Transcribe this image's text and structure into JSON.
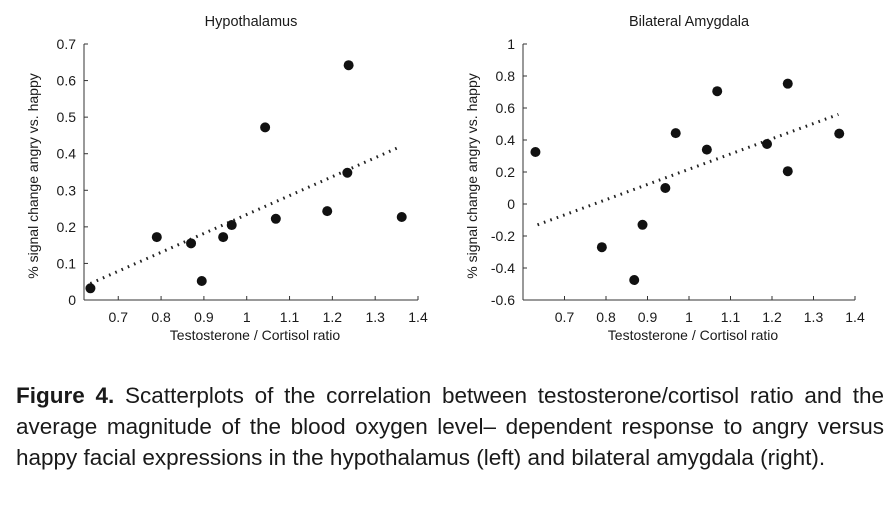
{
  "chart_data": [
    {
      "type": "scatter",
      "title": "Hypothalamus",
      "xlabel": "Testosterone / Cortisol ratio",
      "ylabel": "% signal change angry vs. happy",
      "xlim": [
        0.62,
        1.4
      ],
      "ylim": [
        0,
        0.7
      ],
      "xticks": [
        "0.7",
        "0.8",
        "0.9",
        "1",
        "1.1",
        "1.2",
        "1.3",
        "1.4"
      ],
      "xtick_values": [
        0.7,
        0.8,
        0.9,
        1.0,
        1.1,
        1.2,
        1.3,
        1.4
      ],
      "yticks": [
        "0",
        "0.1",
        "0.2",
        "0.3",
        "0.4",
        "0.5",
        "0.6",
        "0.7"
      ],
      "ytick_values": [
        0,
        0.1,
        0.2,
        0.3,
        0.4,
        0.5,
        0.6,
        0.7
      ],
      "grid": false,
      "points": [
        {
          "x": 0.635,
          "y": 0.032
        },
        {
          "x": 0.79,
          "y": 0.172
        },
        {
          "x": 0.87,
          "y": 0.155
        },
        {
          "x": 0.895,
          "y": 0.052
        },
        {
          "x": 0.945,
          "y": 0.172
        },
        {
          "x": 0.965,
          "y": 0.205
        },
        {
          "x": 1.043,
          "y": 0.472
        },
        {
          "x": 1.068,
          "y": 0.222
        },
        {
          "x": 1.188,
          "y": 0.243
        },
        {
          "x": 1.235,
          "y": 0.348
        },
        {
          "x": 1.238,
          "y": 0.642
        },
        {
          "x": 1.362,
          "y": 0.227
        }
      ],
      "trendline": {
        "style": "dotted",
        "x": [
          0.635,
          1.36
        ],
        "y": [
          0.045,
          0.42
        ]
      }
    },
    {
      "type": "scatter",
      "title": "Bilateral Amygdala",
      "xlabel": "Testosterone / Cortisol ratio",
      "ylabel": "% signal change angry vs. happy",
      "xlim": [
        0.6,
        1.4
      ],
      "ylim": [
        -0.6,
        1
      ],
      "xticks": [
        "0.7",
        "0.8",
        "0.9",
        "1",
        "1.1",
        "1.2",
        "1.3",
        "1.4"
      ],
      "xtick_values": [
        0.7,
        0.8,
        0.9,
        1.0,
        1.1,
        1.2,
        1.3,
        1.4
      ],
      "yticks": [
        "-0.6",
        "-0.4",
        "-0.2",
        "0",
        "0.2",
        "0.4",
        "0.6",
        "0.8",
        "1"
      ],
      "ytick_values": [
        -0.6,
        -0.4,
        -0.2,
        0,
        0.2,
        0.4,
        0.6,
        0.8,
        1.0
      ],
      "grid": false,
      "points": [
        {
          "x": 0.63,
          "y": 0.325
        },
        {
          "x": 0.79,
          "y": -0.27
        },
        {
          "x": 0.868,
          "y": -0.475
        },
        {
          "x": 0.888,
          "y": -0.13
        },
        {
          "x": 0.943,
          "y": 0.1
        },
        {
          "x": 0.968,
          "y": 0.443
        },
        {
          "x": 1.043,
          "y": 0.34
        },
        {
          "x": 1.068,
          "y": 0.705
        },
        {
          "x": 1.188,
          "y": 0.375
        },
        {
          "x": 1.238,
          "y": 0.205
        },
        {
          "x": 1.238,
          "y": 0.752
        },
        {
          "x": 1.362,
          "y": 0.44
        }
      ],
      "trendline": {
        "style": "dotted",
        "x": [
          0.635,
          1.36
        ],
        "y": [
          -0.13,
          0.56
        ]
      }
    }
  ],
  "caption": {
    "label": "Figure 4.",
    "text": "Scatterplots of the correlation between testosterone/cortisol ratio and the average magnitude of the blood oxygen level– dependent response to angry versus happy facial expressions in the hypothalamus (left) and bilateral amygdala (right)."
  }
}
